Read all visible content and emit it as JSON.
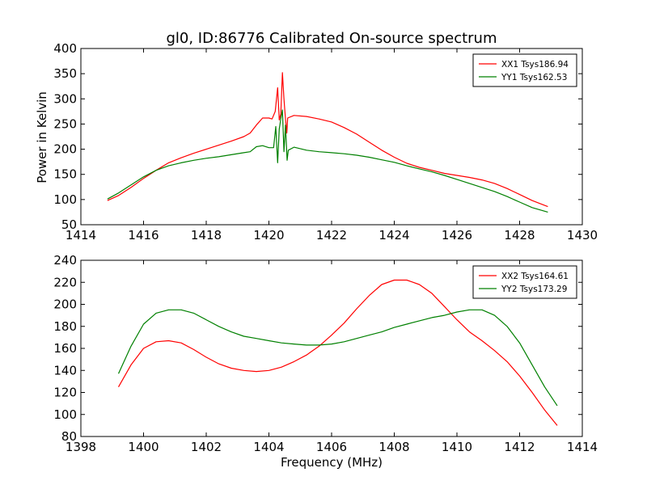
{
  "figure": {
    "title": "gl0, ID:86776 Calibrated On-source spectrum",
    "xlabel": "Frequency (MHz)",
    "ylabel": "Power in Kelvin"
  },
  "chart_data": [
    {
      "type": "line",
      "title": "gl0, ID:86776 Calibrated On-source spectrum",
      "xlabel": "",
      "ylabel": "Power in Kelvin",
      "xlim": [
        1414,
        1430
      ],
      "ylim": [
        50,
        400
      ],
      "xticks": [
        1414,
        1416,
        1418,
        1420,
        1422,
        1424,
        1426,
        1428,
        1430
      ],
      "yticks": [
        50,
        100,
        150,
        200,
        250,
        300,
        350,
        400
      ],
      "legend_position": "top-right",
      "grid": false,
      "series": [
        {
          "name": "XX1 Tsys186.94",
          "color": "#ff0000",
          "points": [
            [
              1414.85,
              98
            ],
            [
              1415.2,
              108
            ],
            [
              1415.6,
              124
            ],
            [
              1416.0,
              142
            ],
            [
              1416.4,
              158
            ],
            [
              1416.8,
              173
            ],
            [
              1417.2,
              183
            ],
            [
              1417.6,
              192
            ],
            [
              1418.0,
              200
            ],
            [
              1418.4,
              208
            ],
            [
              1418.8,
              216
            ],
            [
              1419.2,
              225
            ],
            [
              1419.4,
              232
            ],
            [
              1419.6,
              248
            ],
            [
              1419.8,
              262
            ],
            [
              1420.0,
              262
            ],
            [
              1420.1,
              260
            ],
            [
              1420.2,
              275
            ],
            [
              1420.28,
              322
            ],
            [
              1420.33,
              258
            ],
            [
              1420.38,
              270
            ],
            [
              1420.43,
              352
            ],
            [
              1420.48,
              300
            ],
            [
              1420.52,
              268
            ],
            [
              1420.57,
              232
            ],
            [
              1420.6,
              262
            ],
            [
              1420.8,
              267
            ],
            [
              1421.2,
              265
            ],
            [
              1421.6,
              260
            ],
            [
              1422.0,
              254
            ],
            [
              1422.4,
              243
            ],
            [
              1422.8,
              230
            ],
            [
              1423.2,
              214
            ],
            [
              1423.6,
              198
            ],
            [
              1424.0,
              184
            ],
            [
              1424.4,
              172
            ],
            [
              1424.8,
              164
            ],
            [
              1425.2,
              158
            ],
            [
              1425.6,
              152
            ],
            [
              1426.0,
              148
            ],
            [
              1426.4,
              144
            ],
            [
              1426.8,
              139
            ],
            [
              1427.2,
              132
            ],
            [
              1427.6,
              122
            ],
            [
              1428.0,
              110
            ],
            [
              1428.4,
              98
            ],
            [
              1428.9,
              86
            ]
          ]
        },
        {
          "name": "YY1 Tsys162.53",
          "color": "#008000",
          "points": [
            [
              1414.85,
              101
            ],
            [
              1415.2,
              113
            ],
            [
              1415.6,
              129
            ],
            [
              1416.0,
              145
            ],
            [
              1416.4,
              158
            ],
            [
              1416.8,
              167
            ],
            [
              1417.2,
              173
            ],
            [
              1417.6,
              178
            ],
            [
              1418.0,
              182
            ],
            [
              1418.4,
              185
            ],
            [
              1418.8,
              189
            ],
            [
              1419.2,
              193
            ],
            [
              1419.4,
              195
            ],
            [
              1419.6,
              205
            ],
            [
              1419.8,
              207
            ],
            [
              1420.0,
              203
            ],
            [
              1420.15,
              203
            ],
            [
              1420.22,
              245
            ],
            [
              1420.28,
              173
            ],
            [
              1420.33,
              240
            ],
            [
              1420.38,
              260
            ],
            [
              1420.43,
              278
            ],
            [
              1420.48,
              195
            ],
            [
              1420.53,
              248
            ],
            [
              1420.58,
              178
            ],
            [
              1420.62,
              198
            ],
            [
              1420.8,
              204
            ],
            [
              1421.2,
              198
            ],
            [
              1421.6,
              195
            ],
            [
              1422.0,
              193
            ],
            [
              1422.4,
              191
            ],
            [
              1422.8,
              188
            ],
            [
              1423.2,
              184
            ],
            [
              1423.6,
              179
            ],
            [
              1424.0,
              174
            ],
            [
              1424.4,
              167
            ],
            [
              1424.8,
              161
            ],
            [
              1425.2,
              155
            ],
            [
              1425.6,
              148
            ],
            [
              1426.0,
              140
            ],
            [
              1426.4,
              132
            ],
            [
              1426.8,
              124
            ],
            [
              1427.2,
              116
            ],
            [
              1427.6,
              106
            ],
            [
              1428.0,
              95
            ],
            [
              1428.4,
              84
            ],
            [
              1428.9,
              75
            ]
          ]
        }
      ]
    },
    {
      "type": "line",
      "title": "",
      "xlabel": "Frequency (MHz)",
      "ylabel": "",
      "xlim": [
        1398,
        1414
      ],
      "ylim": [
        80,
        240
      ],
      "xticks": [
        1398,
        1400,
        1402,
        1404,
        1406,
        1408,
        1410,
        1412,
        1414
      ],
      "yticks": [
        80,
        100,
        120,
        140,
        160,
        180,
        200,
        220,
        240
      ],
      "legend_position": "top-right",
      "grid": false,
      "series": [
        {
          "name": "XX2 Tsys164.61",
          "color": "#ff0000",
          "points": [
            [
              1399.2,
              125
            ],
            [
              1399.6,
              145
            ],
            [
              1400.0,
              160
            ],
            [
              1400.4,
              166
            ],
            [
              1400.8,
              167
            ],
            [
              1401.2,
              165
            ],
            [
              1401.6,
              159
            ],
            [
              1402.0,
              152
            ],
            [
              1402.4,
              146
            ],
            [
              1402.8,
              142
            ],
            [
              1403.2,
              140
            ],
            [
              1403.6,
              139
            ],
            [
              1404.0,
              140
            ],
            [
              1404.4,
              143
            ],
            [
              1404.8,
              148
            ],
            [
              1405.2,
              154
            ],
            [
              1405.6,
              162
            ],
            [
              1406.0,
              172
            ],
            [
              1406.4,
              183
            ],
            [
              1406.8,
              196
            ],
            [
              1407.2,
              208
            ],
            [
              1407.6,
              218
            ],
            [
              1408.0,
              222
            ],
            [
              1408.4,
              222
            ],
            [
              1408.8,
              218
            ],
            [
              1409.2,
              210
            ],
            [
              1409.6,
              198
            ],
            [
              1410.0,
              186
            ],
            [
              1410.4,
              175
            ],
            [
              1410.8,
              167
            ],
            [
              1411.2,
              158
            ],
            [
              1411.6,
              148
            ],
            [
              1412.0,
              135
            ],
            [
              1412.4,
              120
            ],
            [
              1412.8,
              104
            ],
            [
              1413.2,
              90
            ]
          ]
        },
        {
          "name": "YY2 Tsys173.29",
          "color": "#008000",
          "points": [
            [
              1399.2,
              137
            ],
            [
              1399.6,
              162
            ],
            [
              1400.0,
              182
            ],
            [
              1400.4,
              192
            ],
            [
              1400.8,
              195
            ],
            [
              1401.2,
              195
            ],
            [
              1401.6,
              192
            ],
            [
              1402.0,
              186
            ],
            [
              1402.4,
              180
            ],
            [
              1402.8,
              175
            ],
            [
              1403.2,
              171
            ],
            [
              1403.6,
              169
            ],
            [
              1404.0,
              167
            ],
            [
              1404.4,
              165
            ],
            [
              1404.8,
              164
            ],
            [
              1405.2,
              163
            ],
            [
              1405.6,
              163
            ],
            [
              1406.0,
              164
            ],
            [
              1406.4,
              166
            ],
            [
              1406.8,
              169
            ],
            [
              1407.2,
              172
            ],
            [
              1407.6,
              175
            ],
            [
              1408.0,
              179
            ],
            [
              1408.4,
              182
            ],
            [
              1408.8,
              185
            ],
            [
              1409.2,
              188
            ],
            [
              1409.6,
              190
            ],
            [
              1410.0,
              193
            ],
            [
              1410.4,
              195
            ],
            [
              1410.8,
              195
            ],
            [
              1411.2,
              190
            ],
            [
              1411.6,
              180
            ],
            [
              1412.0,
              165
            ],
            [
              1412.4,
              145
            ],
            [
              1412.8,
              125
            ],
            [
              1413.2,
              108
            ]
          ]
        }
      ]
    }
  ]
}
